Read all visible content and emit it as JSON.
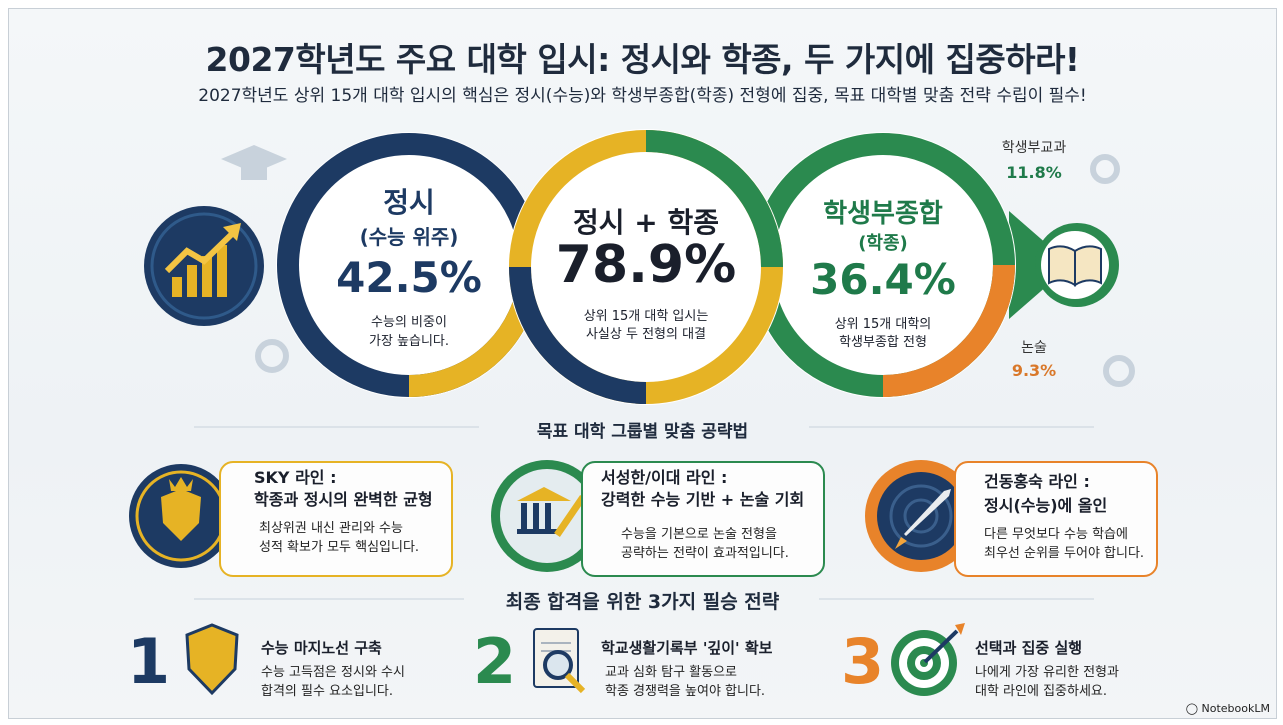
{
  "header": {
    "title": "2027학년도 주요 대학 입시: 정시와 학종, 두 가지에 집중하라!",
    "subtitle": "2027학년도 상위 15개 대학 입시의 핵심은 정시(수능)와 학생부종합(학종) 전형에 집중, 목표 대학별 맞춤 전략 수립이 필수!"
  },
  "circles": {
    "left": {
      "title": "정시",
      "sub": "(수능 위주)",
      "value": "42.5%",
      "desc1": "수능의 비중이",
      "desc2": "가장 높습니다.",
      "fill": 0.425
    },
    "center": {
      "title": "정시 + 학종",
      "value": "78.9%",
      "desc1": "상위 15개 대학 입시는",
      "desc2": "사실상 두 전형의 대결",
      "fill": 0.789
    },
    "right": {
      "title": "학생부종합",
      "sub": "(학종)",
      "value": "36.4%",
      "desc1": "상위 15개 대학의",
      "desc2": "학생부종합 전형",
      "fill": 0.364
    }
  },
  "side": {
    "top": {
      "label": "학생부교과",
      "value": "11.8%"
    },
    "bottom": {
      "label": "논술",
      "value": "9.3%"
    }
  },
  "groups": {
    "title": "목표 대학 그룹별 맞춤 공략법",
    "items": [
      {
        "title1": "SKY 라인 :",
        "title2": "학종과 정시의 완벽한 균형",
        "desc1": "최상위권 내신 관리와 수능",
        "desc2": "성적 확보가 모두 핵심입니다."
      },
      {
        "title1": "서성한/이대 라인 :",
        "title2": "강력한 수능 기반 + 논술 기회",
        "desc1": "수능을 기본으로 논술 전형을",
        "desc2": "공략하는 전략이 효과적입니다."
      },
      {
        "title1": "건동홍숙 라인 :",
        "title2": "정시(수능)에 올인",
        "desc1": "다른 무엇보다 수능 학습에",
        "desc2": "최우선 순위를 두어야 합니다."
      }
    ]
  },
  "strategies": {
    "title": "최종 합격을 위한 3가지 필승 전략",
    "items": [
      {
        "num": "1",
        "title": "수능 마지노선 구축",
        "desc1": "수능 고득점은 정시와 수시",
        "desc2": "합격의 필수 요소입니다."
      },
      {
        "num": "2",
        "title": "학교생활기록부 '깊이' 확보",
        "desc1": "교과 심화 탐구 활동으로",
        "desc2": "학종 경쟁력을 높여야 합니다."
      },
      {
        "num": "3",
        "title": "선택과 집중 실행",
        "desc1": "나에게 가장 유리한 전형과",
        "desc2": "대학 라인에 집중하세요."
      }
    ]
  },
  "footer": {
    "logo": "NotebookLM"
  },
  "colors": {
    "navy": "#1d3a63",
    "green": "#2b8a4f",
    "gold": "#e6b325",
    "orange": "#e8832a"
  }
}
